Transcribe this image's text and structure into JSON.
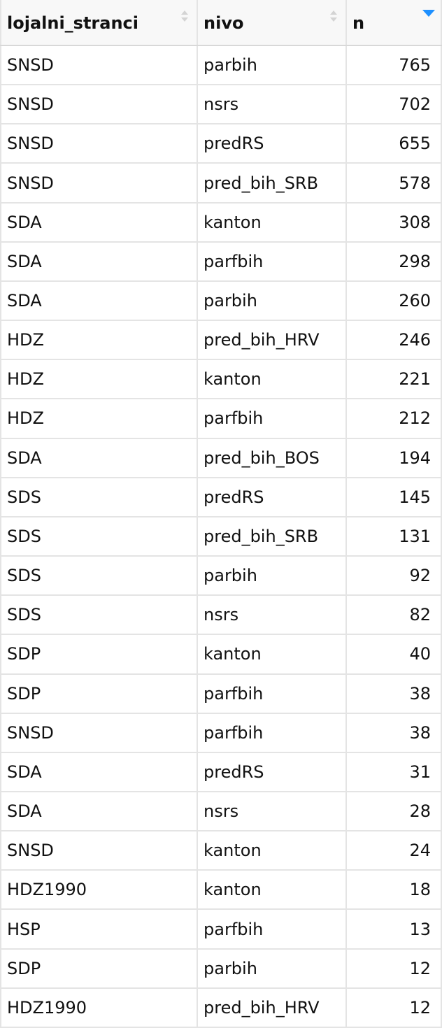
{
  "table": {
    "columns": [
      "lojalni_stranci",
      "nivo",
      "n"
    ],
    "rows": [
      [
        "SNSD",
        "parbih",
        765
      ],
      [
        "SNSD",
        "nsrs",
        702
      ],
      [
        "SNSD",
        "predRS",
        655
      ],
      [
        "SNSD",
        "pred_bih_SRB",
        578
      ],
      [
        "SDA",
        "kanton",
        308
      ],
      [
        "SDA",
        "parfbih",
        298
      ],
      [
        "SDA",
        "parbih",
        260
      ],
      [
        "HDZ",
        "pred_bih_HRV",
        246
      ],
      [
        "HDZ",
        "kanton",
        221
      ],
      [
        "HDZ",
        "parfbih",
        212
      ],
      [
        "SDA",
        "pred_bih_BOS",
        194
      ],
      [
        "SDS",
        "predRS",
        145
      ],
      [
        "SDS",
        "pred_bih_SRB",
        131
      ],
      [
        "SDS",
        "parbih",
        92
      ],
      [
        "SDS",
        "nsrs",
        82
      ],
      [
        "SDP",
        "kanton",
        40
      ],
      [
        "SDP",
        "parfbih",
        38
      ],
      [
        "SNSD",
        "parfbih",
        38
      ],
      [
        "SDA",
        "predRS",
        31
      ],
      [
        "SDA",
        "nsrs",
        28
      ],
      [
        "SNSD",
        "kanton",
        24
      ],
      [
        "HDZ1990",
        "kanton",
        18
      ],
      [
        "HSP",
        "parfbih",
        13
      ],
      [
        "SDP",
        "parbih",
        12
      ],
      [
        "HDZ1990",
        "pred_bih_HRV",
        12
      ]
    ]
  }
}
